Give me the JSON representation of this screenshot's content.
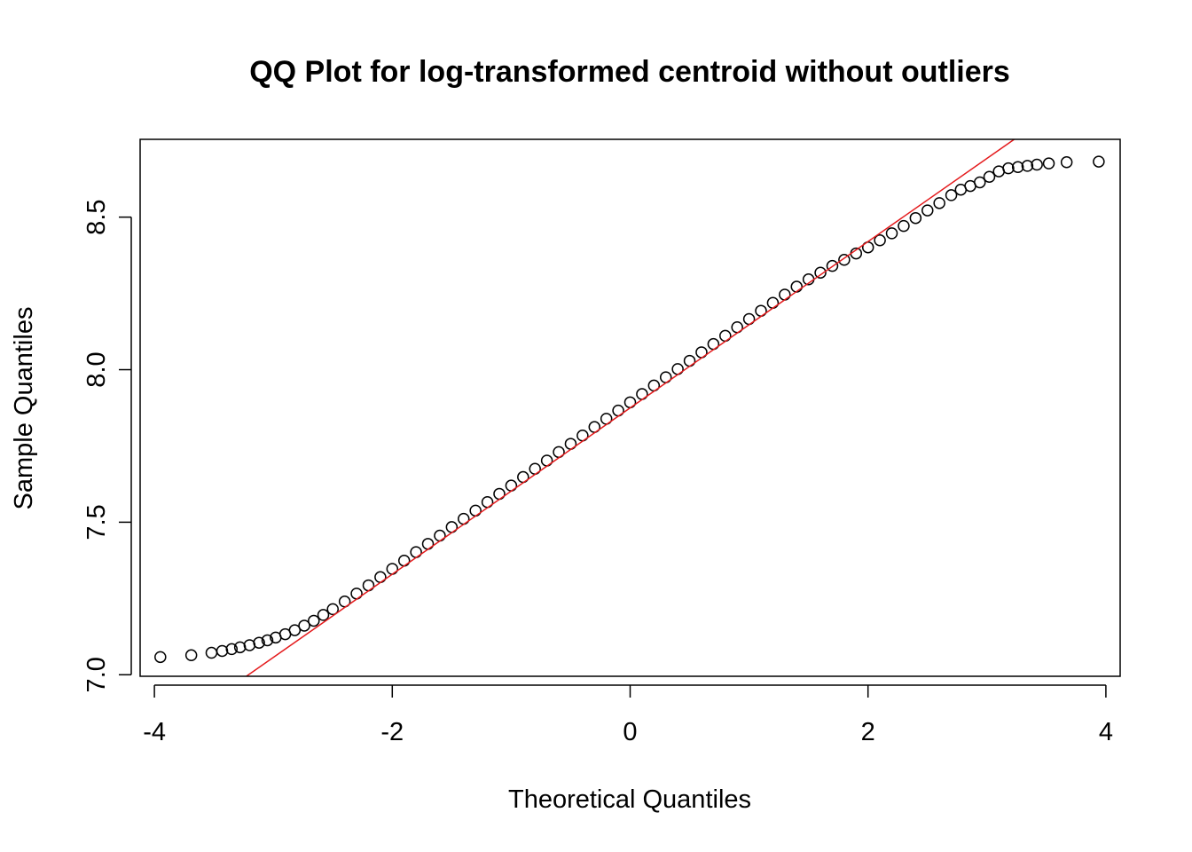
{
  "chart_data": {
    "type": "scatter",
    "title": "QQ Plot for log-transformed centroid without outliers",
    "xlabel": "Theoretical Quantiles",
    "ylabel": "Sample Quantiles",
    "xlim": [
      -4.12,
      4.12
    ],
    "ylim": [
      6.995,
      8.755
    ],
    "x_ticks": [
      -4,
      -2,
      0,
      2,
      4
    ],
    "x_tick_labels": [
      "-4",
      "-2",
      "0",
      "2",
      "4"
    ],
    "y_ticks": [
      7.0,
      7.5,
      8.0,
      8.5
    ],
    "y_tick_labels": [
      "7.0",
      "7.5",
      "8.0",
      "8.5"
    ],
    "grid": false,
    "point_color": "#000000",
    "line_color": "#e41a1c",
    "points": {
      "x": [
        -3.95,
        -3.69,
        -3.52,
        -3.43,
        -3.35,
        -3.28,
        -3.2,
        -3.12,
        -3.05,
        -2.98,
        -2.9,
        -2.82,
        -2.74,
        -2.66,
        -2.58,
        -2.5,
        -2.4,
        -2.3,
        -2.2,
        -2.1,
        -2.0,
        -1.9,
        -1.8,
        -1.7,
        -1.6,
        -1.5,
        -1.4,
        -1.3,
        -1.2,
        -1.1,
        -1.0,
        -0.9,
        -0.8,
        -0.7,
        -0.6,
        -0.5,
        -0.4,
        -0.3,
        -0.2,
        -0.1,
        0.0,
        0.1,
        0.2,
        0.3,
        0.4,
        0.5,
        0.6,
        0.7,
        0.8,
        0.9,
        1.0,
        1.1,
        1.2,
        1.3,
        1.4,
        1.5,
        1.6,
        1.7,
        1.8,
        1.9,
        2.0,
        2.1,
        2.2,
        2.3,
        2.4,
        2.5,
        2.6,
        2.7,
        2.78,
        2.86,
        2.94,
        3.02,
        3.1,
        3.18,
        3.26,
        3.34,
        3.42,
        3.52,
        3.67,
        3.94
      ],
      "y": [
        7.058,
        7.064,
        7.072,
        7.078,
        7.084,
        7.09,
        7.097,
        7.105,
        7.113,
        7.122,
        7.133,
        7.146,
        7.161,
        7.177,
        7.196,
        7.215,
        7.24,
        7.266,
        7.293,
        7.32,
        7.347,
        7.374,
        7.402,
        7.429,
        7.456,
        7.484,
        7.511,
        7.538,
        7.566,
        7.593,
        7.62,
        7.648,
        7.675,
        7.702,
        7.73,
        7.757,
        7.784,
        7.812,
        7.839,
        7.866,
        7.893,
        7.92,
        7.948,
        7.975,
        8.002,
        8.029,
        8.057,
        8.084,
        8.111,
        8.139,
        8.166,
        8.193,
        8.219,
        8.246,
        8.272,
        8.296,
        8.318,
        8.34,
        8.36,
        8.381,
        8.401,
        8.424,
        8.447,
        8.471,
        8.497,
        8.522,
        8.546,
        8.572,
        8.59,
        8.602,
        8.614,
        8.632,
        8.65,
        8.66,
        8.664,
        8.668,
        8.672,
        8.676,
        8.68,
        8.682
      ]
    },
    "reference_line": {
      "slope": 0.2726,
      "intercept": 7.8747
    }
  }
}
